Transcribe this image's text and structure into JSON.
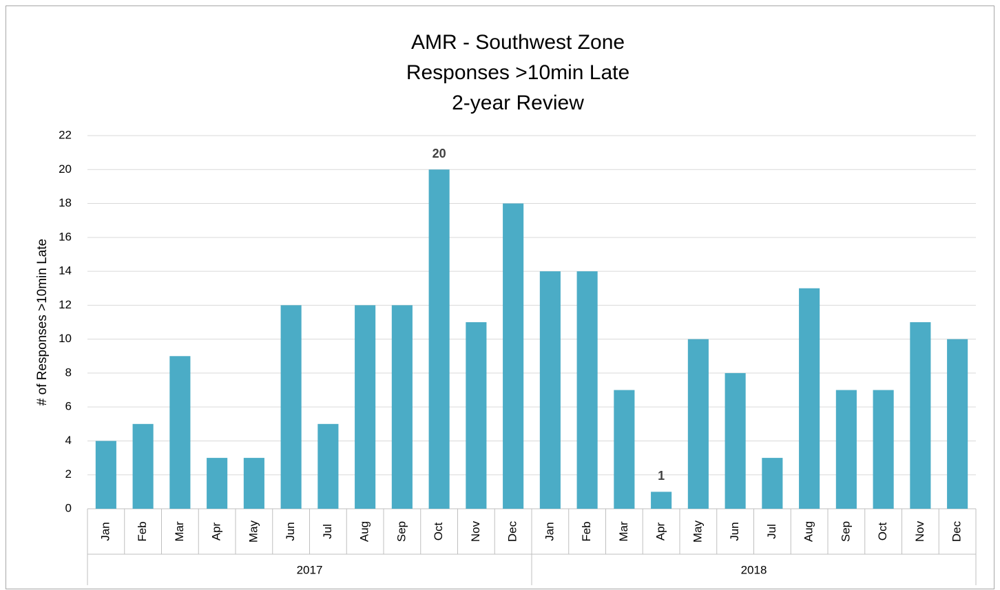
{
  "chart_data": {
    "type": "bar",
    "title": [
      "AMR - Southwest Zone",
      "Responses >10min Late",
      "2-year Review"
    ],
    "y_label": "# of Responses >10min Late",
    "categories": [
      "Jan",
      "Feb",
      "Mar",
      "Apr",
      "May",
      "Jun",
      "Jul",
      "Aug",
      "Sep",
      "Oct",
      "Nov",
      "Dec",
      "Jan",
      "Feb",
      "Mar",
      "Apr",
      "May",
      "Jun",
      "Jul",
      "Aug",
      "Sep",
      "Oct",
      "Nov",
      "Dec"
    ],
    "x_groups": [
      "2017",
      "2018"
    ],
    "values": [
      4,
      5,
      9,
      3,
      3,
      12,
      5,
      12,
      12,
      20,
      11,
      18,
      14,
      14,
      7,
      1,
      10,
      8,
      3,
      13,
      7,
      7,
      11,
      10
    ],
    "value_labels": [
      null,
      null,
      null,
      null,
      null,
      null,
      null,
      null,
      null,
      "20",
      null,
      null,
      null,
      null,
      null,
      "1",
      null,
      null,
      null,
      null,
      null,
      null,
      null,
      null
    ],
    "color": "#4bacc6",
    "ylim": [
      0,
      22
    ],
    "yticks": [
      0,
      2,
      4,
      6,
      8,
      10,
      12,
      14,
      16,
      18,
      20,
      22
    ],
    "grid": true
  }
}
